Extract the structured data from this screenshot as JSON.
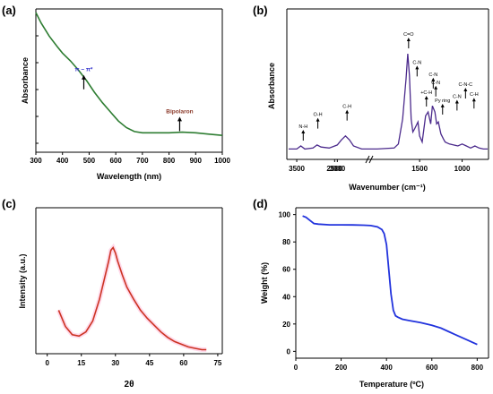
{
  "chart_data": [
    {
      "panel": "(a)",
      "type": "line",
      "title": "",
      "xlabel": "Wavelength (nm)",
      "ylabel": "Absorbance",
      "xlim": [
        300,
        1000
      ],
      "xticks": [
        300,
        400,
        500,
        600,
        700,
        800,
        900,
        1000
      ],
      "y_ticks_labeled": false,
      "series": [
        {
          "color": "#2e7d32",
          "x": [
            300,
            320,
            350,
            380,
            400,
            430,
            460,
            490,
            520,
            550,
            580,
            610,
            640,
            670,
            700,
            750,
            800,
            850,
            900,
            950,
            1000
          ],
          "y": [
            1.0,
            0.92,
            0.82,
            0.74,
            0.69,
            0.63,
            0.56,
            0.48,
            0.39,
            0.31,
            0.24,
            0.17,
            0.12,
            0.09,
            0.08,
            0.08,
            0.08,
            0.085,
            0.08,
            0.07,
            0.06
          ]
        }
      ],
      "annotations": [
        {
          "text": "π − π*",
          "x": 480,
          "y": 0.55,
          "color": "#3333cc"
        },
        {
          "text": "Bipolaron",
          "x": 840,
          "y": 0.23,
          "color": "#8b3a2a"
        }
      ]
    },
    {
      "panel": "(b)",
      "type": "line",
      "title": "",
      "xlabel": "Wavenumber (cm⁻¹)",
      "ylabel": "Absorbance",
      "xticks": [
        3500,
        3000,
        2500,
        1500,
        1000
      ],
      "axis_break": true,
      "reversed_x": true,
      "y_ticks_labeled": false,
      "series": [
        {
          "color": "#4b2a8c",
          "x": [
            3600,
            3500,
            3450,
            3400,
            3300,
            3250,
            3200,
            3100,
            3000,
            2950,
            2900,
            2850,
            2800,
            2700,
            2650,
            2050,
            2000,
            1800,
            1750,
            1700,
            1660,
            1640,
            1620,
            1600,
            1580,
            1560,
            1520,
            1500,
            1470,
            1450,
            1430,
            1400,
            1370,
            1350,
            1320,
            1300,
            1280,
            1250,
            1220,
            1200,
            1150,
            1100,
            1050,
            1000,
            950,
            900,
            850,
            800,
            750,
            700
          ],
          "y": [
            0.05,
            0.05,
            0.08,
            0.05,
            0.06,
            0.09,
            0.07,
            0.06,
            0.09,
            0.14,
            0.18,
            0.14,
            0.08,
            0.05,
            0.05,
            0.05,
            0.05,
            0.06,
            0.1,
            0.35,
            0.75,
            1.0,
            0.78,
            0.35,
            0.22,
            0.25,
            0.32,
            0.18,
            0.12,
            0.25,
            0.38,
            0.42,
            0.3,
            0.48,
            0.42,
            0.3,
            0.32,
            0.2,
            0.15,
            0.12,
            0.1,
            0.09,
            0.08,
            0.1,
            0.08,
            0.06,
            0.08,
            0.06,
            0.05,
            0.05
          ]
        }
      ],
      "annotations": [
        {
          "text": "N-H",
          "x": 3420,
          "y": 0.08
        },
        {
          "text": "O-H",
          "x": 3240,
          "y": 0.2
        },
        {
          "text": "C-H",
          "x": 2880,
          "y": 0.28
        },
        {
          "text": "C=O",
          "x": 1630,
          "y": 1.0
        },
        {
          "text": "C-N",
          "x": 1530,
          "y": 0.72
        },
        {
          "text": "+C-H",
          "x": 1420,
          "y": 0.42
        },
        {
          "text": "C-N",
          "x": 1340,
          "y": 0.6
        },
        {
          "text": "C-N",
          "x": 1310,
          "y": 0.52
        },
        {
          "text": "Py ring",
          "x": 1230,
          "y": 0.34
        },
        {
          "text": "C-N",
          "x": 1060,
          "y": 0.38
        },
        {
          "text": "C-N-C",
          "x": 960,
          "y": 0.5
        },
        {
          "text": "C-H",
          "x": 860,
          "y": 0.4
        }
      ]
    },
    {
      "panel": "(c)",
      "type": "line",
      "title": "",
      "xlabel": "2θ",
      "ylabel": "Intensity (a.u.)",
      "xlim": [
        -5,
        77
      ],
      "xticks": [
        0,
        15,
        30,
        45,
        60,
        75
      ],
      "y_ticks_labeled": false,
      "series": [
        {
          "color": "#cc3322",
          "x": [
            5,
            8,
            11,
            14,
            17,
            20,
            23,
            25,
            27,
            28,
            29,
            30,
            31,
            33,
            35,
            38,
            41,
            44,
            47,
            50,
            53,
            56,
            59,
            62,
            65,
            68,
            70
          ],
          "y": [
            0.3,
            0.18,
            0.12,
            0.11,
            0.14,
            0.22,
            0.38,
            0.52,
            0.66,
            0.74,
            0.76,
            0.72,
            0.66,
            0.56,
            0.47,
            0.38,
            0.3,
            0.24,
            0.19,
            0.14,
            0.1,
            0.07,
            0.05,
            0.03,
            0.02,
            0.01,
            0.01
          ]
        }
      ]
    },
    {
      "panel": "(d)",
      "type": "line",
      "title": "",
      "xlabel": "Temperature (ºC)",
      "ylabel": "Weight (%)",
      "xlim": [
        0,
        850
      ],
      "ylim": [
        -5,
        105
      ],
      "xticks": [
        0,
        200,
        400,
        600,
        800
      ],
      "yticks": [
        0,
        20,
        40,
        60,
        80,
        100
      ],
      "series": [
        {
          "color": "#2233dd",
          "x": [
            30,
            45,
            60,
            80,
            100,
            150,
            200,
            250,
            300,
            330,
            360,
            380,
            390,
            400,
            410,
            420,
            430,
            440,
            450,
            470,
            500,
            550,
            600,
            640,
            680,
            720,
            760,
            800
          ],
          "y": [
            99,
            98,
            96,
            93.5,
            93,
            92.5,
            92.5,
            92.4,
            92.2,
            92,
            91,
            89,
            86,
            78,
            60,
            42,
            30,
            26,
            25,
            23.5,
            22.5,
            21,
            19,
            17,
            14,
            11,
            8,
            5
          ]
        }
      ]
    }
  ]
}
